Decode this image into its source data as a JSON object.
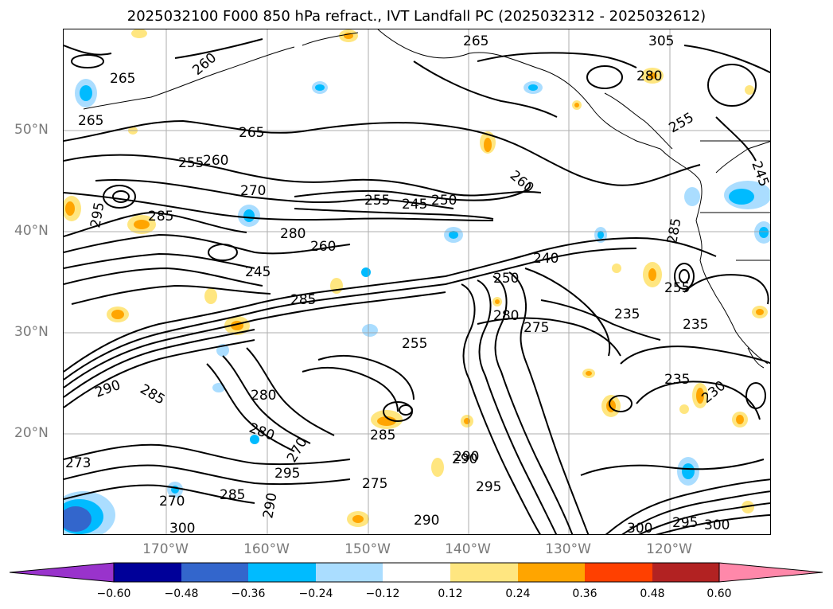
{
  "title": "2025032100 F000 850 hPa refract., IVT Landfall PC (2025032312 - 2025032612)",
  "lat_labels": [
    "50°N",
    "40°N",
    "30°N",
    "20°N"
  ],
  "lon_labels": [
    "170°W",
    "160°W",
    "150°W",
    "140°W",
    "130°W",
    "120°W"
  ],
  "contour_labels": [
    "265",
    "260",
    "265",
    "265",
    "265",
    "255",
    "260",
    "270",
    "255",
    "245",
    "250",
    "260",
    "295",
    "285",
    "280",
    "260",
    "245",
    "285",
    "255",
    "240",
    "250",
    "280",
    "275",
    "235",
    "235",
    "290",
    "285",
    "280",
    "285",
    "270",
    "290",
    "280",
    "235",
    "230",
    "273",
    "270",
    "285",
    "290",
    "300",
    "295",
    "290",
    "295",
    "290",
    "300",
    "295",
    "300",
    "275",
    "255",
    "245",
    "285",
    "255",
    "305",
    "280"
  ],
  "colorbar": {
    "tick_labels": [
      "−0.60",
      "−0.48",
      "−0.36",
      "−0.24",
      "−0.12",
      "0.12",
      "0.24",
      "0.36",
      "0.48",
      "0.60"
    ],
    "colors": [
      "#9933cc",
      "#000099",
      "#3366cc",
      "#00bbff",
      "#aaddff",
      "#ffffff",
      "#ffe680",
      "#ffa500",
      "#ff4000",
      "#b22222",
      "#ff88aa"
    ]
  },
  "colors": {
    "contour": "#000000",
    "grid": "#999999",
    "axis_label": "#7a7a7a"
  }
}
